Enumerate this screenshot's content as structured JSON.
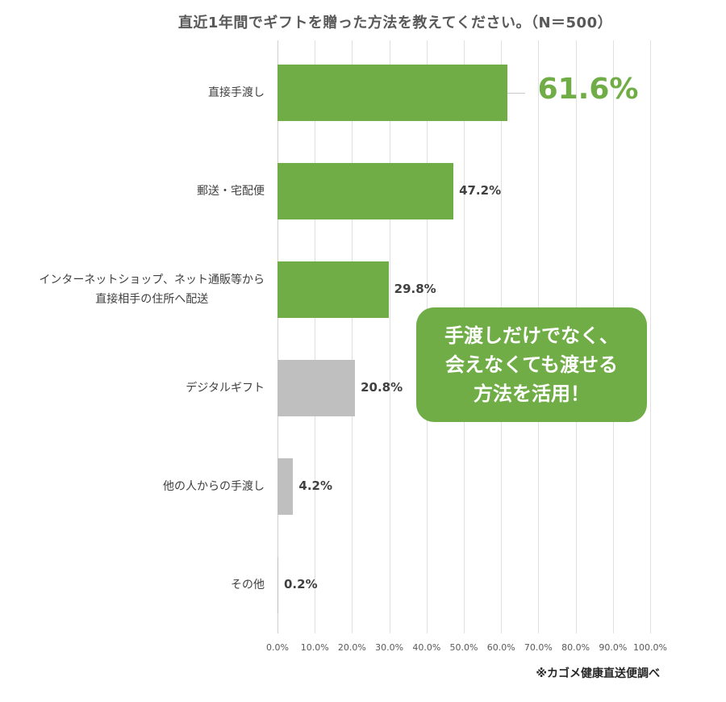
{
  "title": "直近1年間でギフトを贈った方法を教えてください。（N＝500）",
  "callout": {
    "lines": [
      "手渡しだけでなく、",
      "会えなくても渡せる",
      "方法を活用！"
    ]
  },
  "source": "※カゴメ健康直送便調べ",
  "colors": {
    "highlight": "#70AD47",
    "muted": "#BFBFBF",
    "grid": "#E0E0E0"
  },
  "categories": [
    {
      "label_lines": [
        "直接手渡し"
      ],
      "value_label": "61.6%",
      "color": "#70AD47"
    },
    {
      "label_lines": [
        "郵送・宅配便"
      ],
      "value_label": "47.2%",
      "color": "#70AD47"
    },
    {
      "label_lines": [
        "インターネットショップ、ネット通販等から",
        "直接相手の住所へ配送"
      ],
      "value_label": "29.8%",
      "color": "#70AD47"
    },
    {
      "label_lines": [
        "デジタルギフト"
      ],
      "value_label": "20.8%",
      "color": "#BFBFBF"
    },
    {
      "label_lines": [
        "他の人からの手渡し"
      ],
      "value_label": "4.2%",
      "color": "#BFBFBF"
    },
    {
      "label_lines": [
        "その他"
      ],
      "value_label": "0.2%",
      "color": "#BFBFBF"
    }
  ],
  "x_ticks": [
    "0.0%",
    "10.0%",
    "20.0%",
    "30.0%",
    "40.0%",
    "50.0%",
    "60.0%",
    "70.0%",
    "80.0%",
    "90.0%",
    "100.0%"
  ],
  "chart_data": {
    "type": "bar",
    "orientation": "horizontal",
    "title": "直近1年間でギフトを贈った方法を教えてください。（N＝500）",
    "categories": [
      "直接手渡し",
      "郵送・宅配便",
      "インターネットショップ、ネット通販等から直接相手の住所へ配送",
      "デジタルギフト",
      "他の人からの手渡し",
      "その他"
    ],
    "values": [
      61.6,
      47.2,
      29.8,
      20.8,
      4.2,
      0.2
    ],
    "unit": "%",
    "xlabel": "",
    "ylabel": "",
    "xlim": [
      0,
      100
    ],
    "x_tick_step": 10,
    "grid": true,
    "legend": null,
    "bar_colors": [
      "#70AD47",
      "#70AD47",
      "#70AD47",
      "#BFBFBF",
      "#BFBFBF",
      "#BFBFBF"
    ],
    "annotations": [
      "手渡しだけでなく、会えなくても渡せる方法を活用！",
      "※カゴメ健康直送便調べ"
    ]
  }
}
